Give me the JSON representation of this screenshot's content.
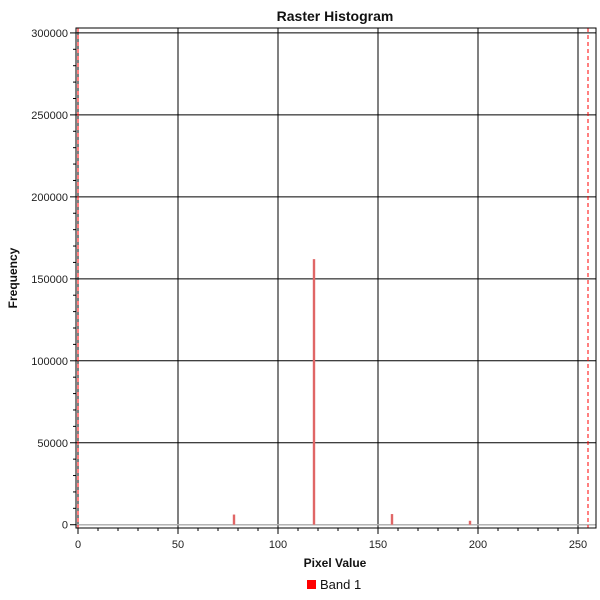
{
  "chart_data": {
    "type": "bar",
    "title": "Raster Histogram",
    "xlabel": "Pixel Value",
    "ylabel": "Frequency",
    "xlim": [
      -1,
      259
    ],
    "ylim": [
      -2000,
      303000
    ],
    "x_ticks": [
      0,
      50,
      100,
      150,
      200,
      250
    ],
    "y_ticks": [
      0,
      50000,
      100000,
      150000,
      200000,
      250000,
      300000
    ],
    "x_tick_labels": [
      "0",
      "50",
      "100",
      "150",
      "200",
      "250"
    ],
    "y_tick_labels": [
      "0",
      "50000",
      "100000",
      "150000",
      "200000",
      "250000",
      "300000"
    ],
    "grid": true,
    "legend_position": "bottom-center",
    "series": [
      {
        "name": "Band 1",
        "color": "#e06666",
        "x": [
          78,
          118,
          157,
          196
        ],
        "values": [
          6200,
          162000,
          6500,
          2400
        ]
      }
    ],
    "markers": [
      {
        "x": 0,
        "color": "#ff0000",
        "style": "dashed"
      },
      {
        "x": 255,
        "color": "#ff0000",
        "style": "dashed"
      }
    ],
    "legend": {
      "label": "Band 1",
      "color": "#ff0000"
    }
  }
}
